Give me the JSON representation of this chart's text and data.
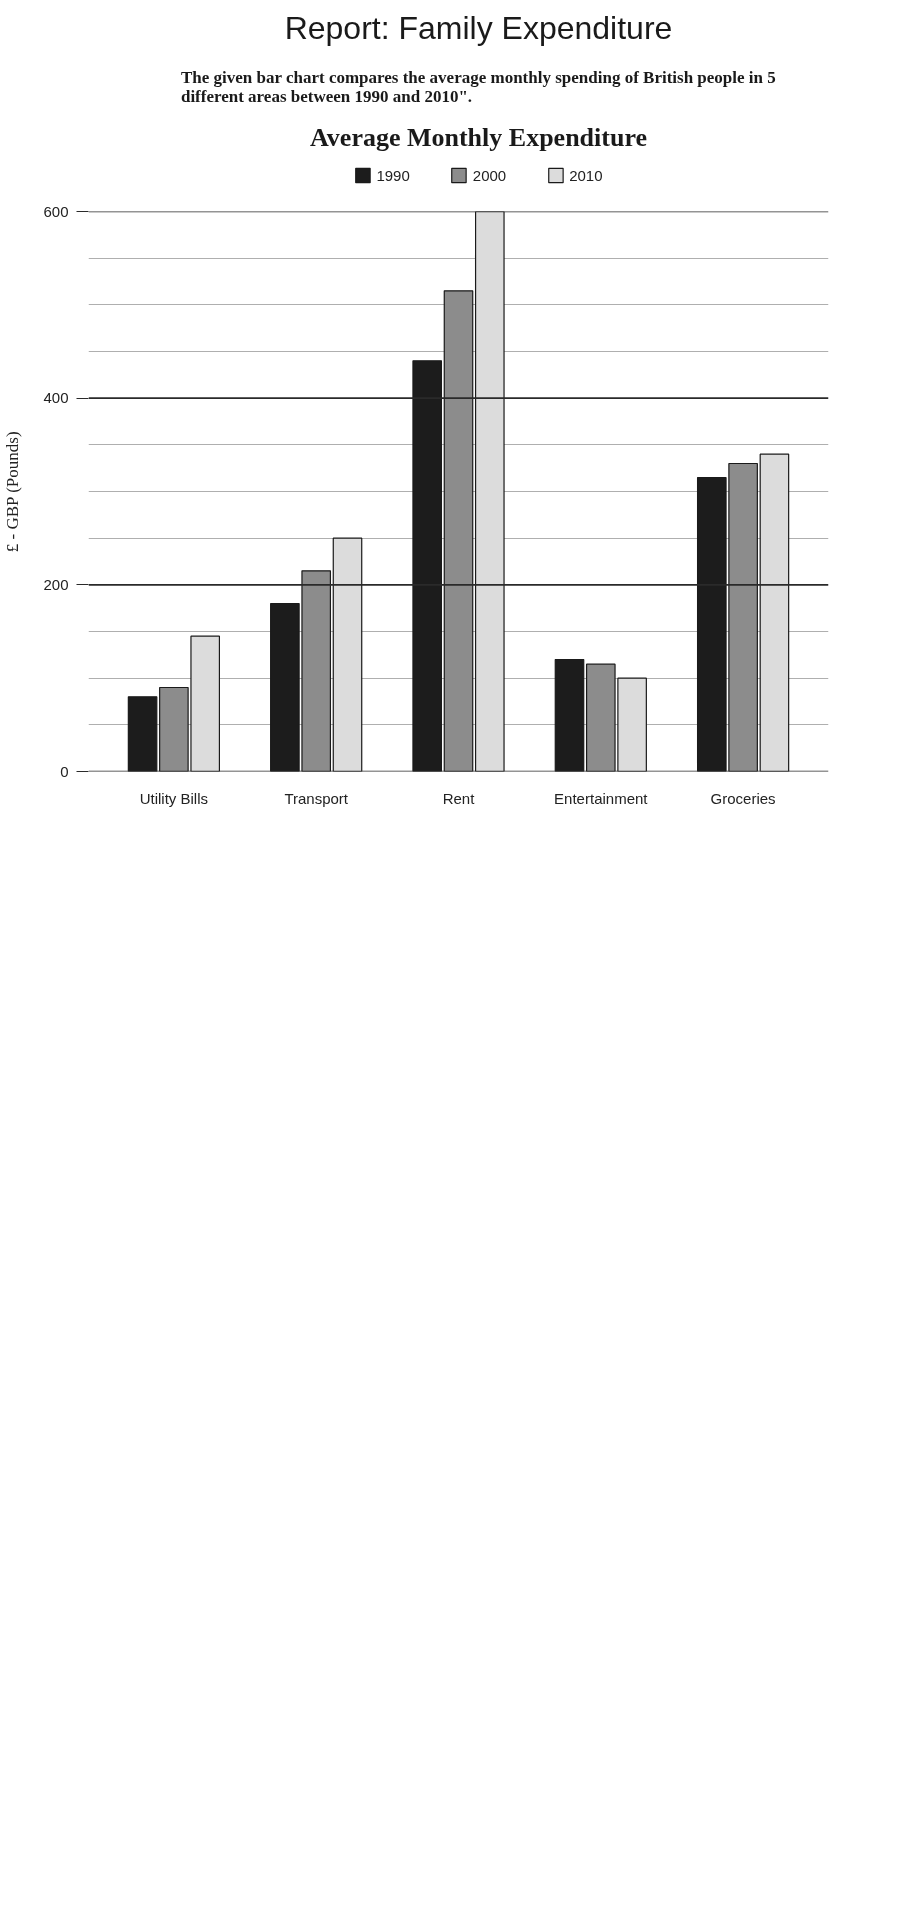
{
  "chart_data": {
    "type": "bar",
    "title": "Average Monthly Expenditure",
    "annotations": [
      "Report: Family Expenditure",
      "The given bar chart compares the average monthly spending of British people in 5 different areas between 1990 and 2010\"."
    ],
    "ylabel": "£ - GBP (Pounds)",
    "categories": [
      "Utility Bills",
      "Transport",
      "Rent",
      "Entertainment",
      "Groceries"
    ],
    "series": [
      {
        "name": "1990",
        "color": "#1c1c1c",
        "values": [
          80,
          180,
          440,
          120,
          315
        ]
      },
      {
        "name": "2000",
        "color": "#8c8c8c",
        "values": [
          90,
          215,
          515,
          115,
          330
        ]
      },
      {
        "name": "2010",
        "color": "#dcdcdc",
        "values": [
          145,
          250,
          600,
          100,
          340
        ]
      }
    ],
    "ylim": [
      0,
      600
    ],
    "yticks": [
      0,
      {
        "value": 50,
        "label": null
      },
      {
        "value": 100,
        "label": null
      },
      {
        "value": 150,
        "label": null
      },
      200,
      {
        "value": 250,
        "label": null
      },
      {
        "value": 300,
        "label": null
      },
      {
        "value": 350,
        "label": null
      },
      400,
      {
        "value": 450,
        "label": null
      },
      {
        "value": 500,
        "label": null
      },
      {
        "value": 550,
        "label": null
      },
      600
    ],
    "grid": "y",
    "legend": "top"
  }
}
